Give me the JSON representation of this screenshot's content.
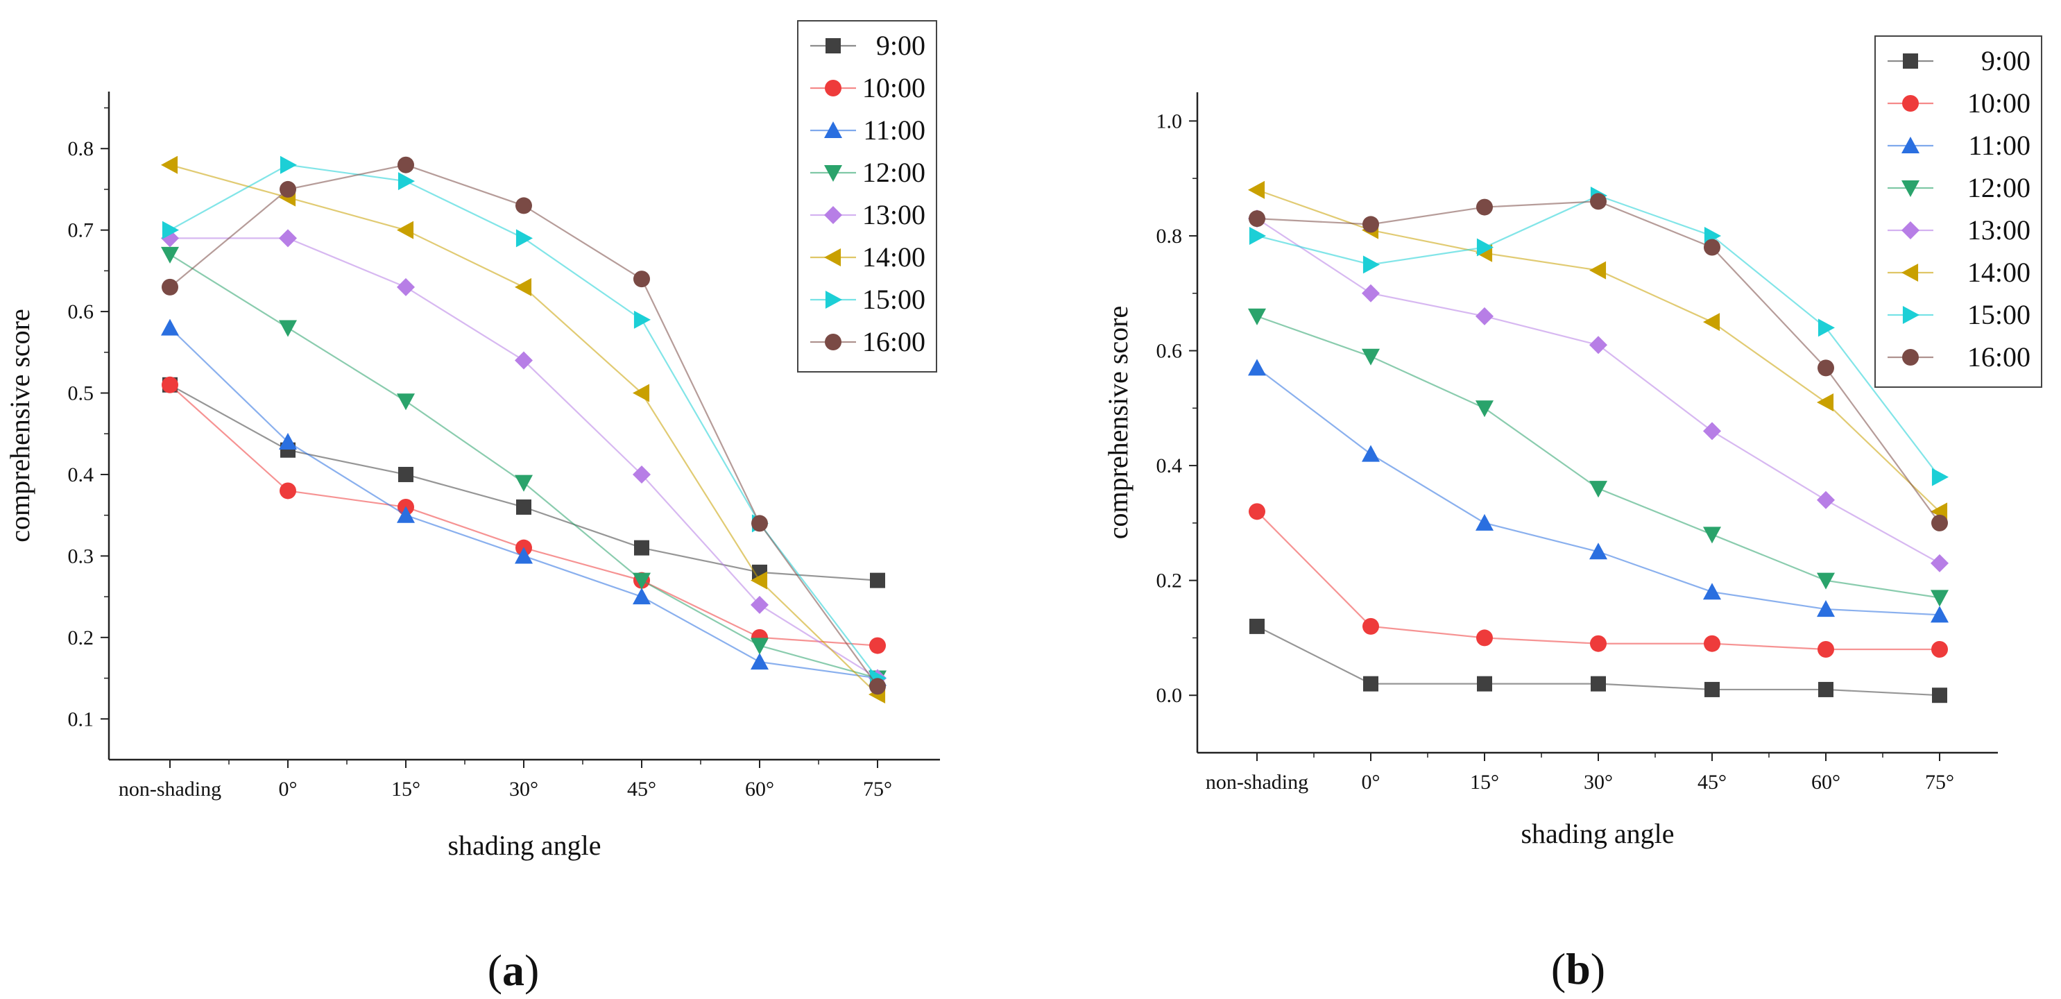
{
  "chart_data": [
    {
      "type": "line",
      "panel_label": "(a)",
      "panel_letter": "a",
      "xlabel": "shading angle",
      "ylabel": "comprehensive score",
      "categories": [
        "non-shading",
        "0°",
        "15°",
        "30°",
        "45°",
        "60°",
        "75°"
      ],
      "ylim": [
        0.05,
        0.87
      ],
      "yticks": [
        0.1,
        0.2,
        0.3,
        0.4,
        0.5,
        0.6,
        0.7,
        0.8
      ],
      "ytick_labels": [
        "0.1",
        "0.2",
        "0.3",
        "0.4",
        "0.5",
        "0.6",
        "0.7",
        "0.8"
      ],
      "grid": false,
      "legend_position": "top-right",
      "series": [
        {
          "name": "9:00",
          "color": "#404040",
          "marker": "square",
          "values": [
            0.51,
            0.43,
            0.4,
            0.36,
            0.31,
            0.28,
            0.27
          ]
        },
        {
          "name": "10:00",
          "color": "#ee3b3b",
          "marker": "circle",
          "values": [
            0.51,
            0.38,
            0.36,
            0.31,
            0.27,
            0.2,
            0.19
          ]
        },
        {
          "name": "11:00",
          "color": "#2a6fe0",
          "marker": "triangle-up",
          "values": [
            0.58,
            0.44,
            0.35,
            0.3,
            0.25,
            0.17,
            0.15
          ]
        },
        {
          "name": "12:00",
          "color": "#2aa36b",
          "marker": "triangle-down",
          "values": [
            0.67,
            0.58,
            0.49,
            0.39,
            0.27,
            0.19,
            0.15
          ]
        },
        {
          "name": "13:00",
          "color": "#b77ee6",
          "marker": "diamond",
          "values": [
            0.69,
            0.69,
            0.63,
            0.54,
            0.4,
            0.24,
            0.15
          ]
        },
        {
          "name": "14:00",
          "color": "#c9a000",
          "marker": "triangle-left",
          "values": [
            0.78,
            0.74,
            0.7,
            0.63,
            0.5,
            0.27,
            0.13
          ]
        },
        {
          "name": "15:00",
          "color": "#1ccfd6",
          "marker": "triangle-right",
          "values": [
            0.7,
            0.78,
            0.76,
            0.69,
            0.59,
            0.34,
            0.15
          ]
        },
        {
          "name": "16:00",
          "color": "#7a4a45",
          "marker": "circle",
          "values": [
            0.63,
            0.75,
            0.78,
            0.73,
            0.64,
            0.34,
            0.14
          ]
        }
      ]
    },
    {
      "type": "line",
      "panel_label": "(b)",
      "panel_letter": "b",
      "xlabel": "shading angle",
      "ylabel": "comprehensive score",
      "categories": [
        "non-shading",
        "0°",
        "15°",
        "30°",
        "45°",
        "60°",
        "75°"
      ],
      "ylim": [
        -0.1,
        1.05
      ],
      "yticks": [
        0.0,
        0.2,
        0.4,
        0.6,
        0.8,
        1.0
      ],
      "ytick_labels": [
        "0.0",
        "0.2",
        "0.4",
        "0.6",
        "0.8",
        "1.0"
      ],
      "grid": false,
      "legend_position": "top-right",
      "series": [
        {
          "name": "9:00",
          "color": "#404040",
          "marker": "square",
          "values": [
            0.12,
            0.02,
            0.02,
            0.02,
            0.01,
            0.01,
            0.0
          ]
        },
        {
          "name": "10:00",
          "color": "#ee3b3b",
          "marker": "circle",
          "values": [
            0.32,
            0.12,
            0.1,
            0.09,
            0.09,
            0.08,
            0.08
          ]
        },
        {
          "name": "11:00",
          "color": "#2a6fe0",
          "marker": "triangle-up",
          "values": [
            0.57,
            0.42,
            0.3,
            0.25,
            0.18,
            0.15,
            0.14
          ]
        },
        {
          "name": "12:00",
          "color": "#2aa36b",
          "marker": "triangle-down",
          "values": [
            0.66,
            0.59,
            0.5,
            0.36,
            0.28,
            0.2,
            0.17
          ]
        },
        {
          "name": "13:00",
          "color": "#b77ee6",
          "marker": "diamond",
          "values": [
            0.83,
            0.7,
            0.66,
            0.61,
            0.46,
            0.34,
            0.23
          ]
        },
        {
          "name": "14:00",
          "color": "#c9a000",
          "marker": "triangle-left",
          "values": [
            0.88,
            0.81,
            0.77,
            0.74,
            0.65,
            0.51,
            0.32
          ]
        },
        {
          "name": "15:00",
          "color": "#1ccfd6",
          "marker": "triangle-right",
          "values": [
            0.8,
            0.75,
            0.78,
            0.87,
            0.8,
            0.64,
            0.38
          ]
        },
        {
          "name": "16:00",
          "color": "#7a4a45",
          "marker": "circle",
          "values": [
            0.83,
            0.82,
            0.85,
            0.86,
            0.78,
            0.57,
            0.3
          ]
        }
      ]
    }
  ]
}
